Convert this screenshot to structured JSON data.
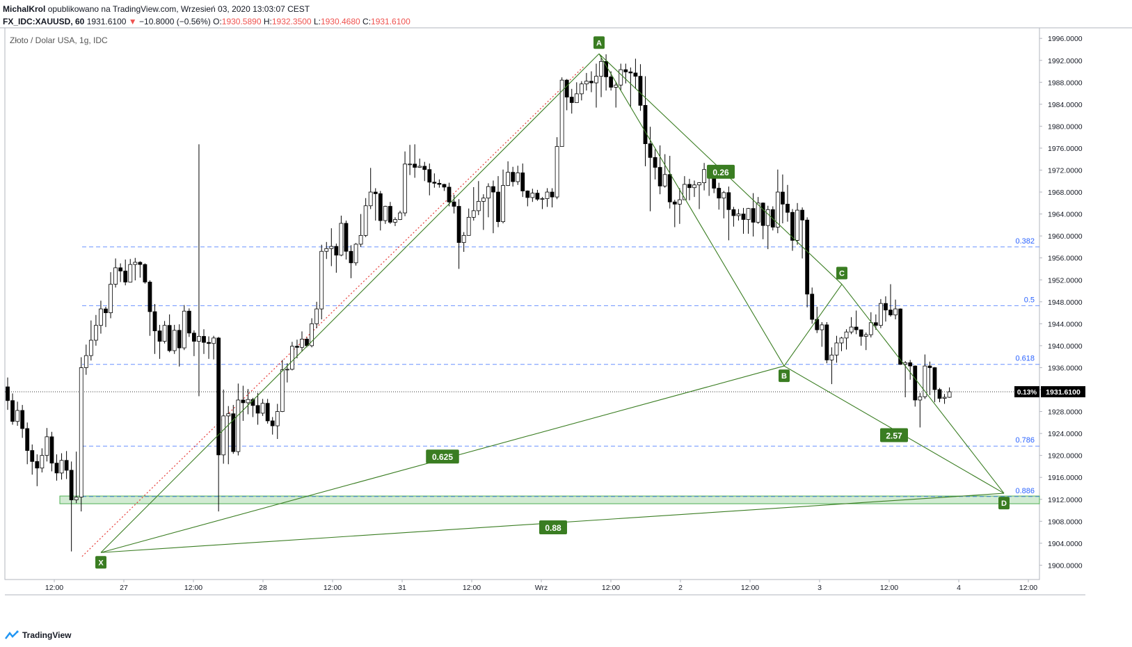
{
  "header": {
    "author": "MichalKrol",
    "published": "opublikowano na TradingView.com, Wrzesień 03, 2020 13:03:07 CEST",
    "symbol": "FX_IDC:XAUUSD, 60",
    "last": "1931.6100",
    "change": "−10.8000 (−0.56%)",
    "o_label": "O:",
    "o": "1930.5890",
    "h_label": "H:",
    "h": "1932.3500",
    "l_label": "L:",
    "l": "1930.4680",
    "c_label": "C:",
    "c": "1931.6100"
  },
  "footer": {
    "brand": "TradingView"
  },
  "colors": {
    "up": "#ffffff",
    "down": "#000000",
    "pattern": "#3a7d22",
    "fib": "#2962ff",
    "zone": "#4caf50"
  },
  "chart_data": {
    "type": "candlestick",
    "title": "Złoto / Dolar USA, 1g, IDC",
    "ylim": [
      1898,
      1998
    ],
    "y_ticks": [
      1900,
      1904,
      1908,
      1912,
      1916,
      1920,
      1924,
      1928,
      1932,
      1936,
      1940,
      1944,
      1948,
      1952,
      1956,
      1960,
      1964,
      1968,
      1972,
      1976,
      1980,
      1984,
      1988,
      1992,
      1996
    ],
    "x_labels": [
      "12:00",
      "27",
      "12:00",
      "28",
      "12:00",
      "31",
      "12:00",
      "Wrz",
      "12:00",
      "2",
      "12:00",
      "3",
      "12:00",
      "4",
      "12:00"
    ],
    "current_price": "1931.6100",
    "current_value": 1931.61,
    "current_pct": "0.13%",
    "fib_levels": [
      {
        "label": "0.382",
        "value": 1958.0
      },
      {
        "label": "0.5",
        "value": 1947.3
      },
      {
        "label": "0.618",
        "value": 1936.6
      },
      {
        "label": "0.786",
        "value": 1921.7
      },
      {
        "label": "0.886",
        "value": 1912.5
      }
    ],
    "prz_zone": [
      1911.2,
      1912.6
    ],
    "pattern_points": [
      {
        "label": "X",
        "t": 145,
        "value": 1902.3
      },
      {
        "label": "A",
        "t": 861,
        "value": 1993.2
      },
      {
        "label": "B",
        "t": 1127,
        "value": 1936.3
      },
      {
        "label": "C",
        "t": 1210,
        "value": 1951.2
      },
      {
        "label": "D",
        "t": 1443,
        "value": 1913.1
      }
    ],
    "ratios": [
      {
        "label": "0.26",
        "t": 1036,
        "value": 1971.7
      },
      {
        "label": "0.625",
        "t": 636,
        "value": 1919.8
      },
      {
        "label": "0.88",
        "t": 795,
        "value": 1906.9
      },
      {
        "label": "2.57",
        "t": 1285,
        "value": 1923.7
      }
    ],
    "candles": [
      [
        1932.5,
        1930.0,
        1934.2,
        1928.3
      ],
      [
        1930.0,
        1926.2,
        1931.3,
        1925.6
      ],
      [
        1926.2,
        1928.2,
        1929.8,
        1925.4
      ],
      [
        1928.2,
        1924.9,
        1929.2,
        1923.2
      ],
      [
        1924.9,
        1920.9,
        1926.0,
        1918.4
      ],
      [
        1920.9,
        1918.9,
        1922.0,
        1916.5
      ],
      [
        1918.9,
        1917.7,
        1920.2,
        1914.4
      ],
      [
        1917.7,
        1920.0,
        1921.3,
        1916.9
      ],
      [
        1920.0,
        1923.4,
        1925.0,
        1918.9
      ],
      [
        1923.4,
        1918.6,
        1924.3,
        1917.1
      ],
      [
        1918.6,
        1916.8,
        1920.2,
        1915.4
      ],
      [
        1916.8,
        1919.1,
        1920.4,
        1915.6
      ],
      [
        1919.1,
        1917.3,
        1920.8,
        1915.7
      ],
      [
        1917.3,
        1911.9,
        1918.9,
        1902.5
      ],
      [
        1911.9,
        1912.4,
        1920.7,
        1911.3
      ],
      [
        1912.4,
        1936.0,
        1937.9,
        1909.8
      ],
      [
        1936.0,
        1938.2,
        1940.2,
        1934.7
      ],
      [
        1938.2,
        1941.0,
        1944.6,
        1937.3
      ],
      [
        1941.0,
        1943.7,
        1945.6,
        1940.0
      ],
      [
        1943.7,
        1946.7,
        1948.2,
        1942.2
      ],
      [
        1946.7,
        1946.0,
        1947.1,
        1943.4
      ],
      [
        1946.0,
        1951.2,
        1953.4,
        1945.0
      ],
      [
        1951.2,
        1954.2,
        1955.9,
        1950.6
      ],
      [
        1954.2,
        1953.6,
        1955.0,
        1951.6
      ],
      [
        1953.6,
        1951.6,
        1955.7,
        1951.0
      ],
      [
        1951.6,
        1954.8,
        1955.8,
        1953.8
      ],
      [
        1954.8,
        1955.2,
        1956.0,
        1951.9
      ],
      [
        1955.2,
        1954.8,
        1955.4,
        1952.4
      ],
      [
        1954.8,
        1951.6,
        1955.0,
        1951.3
      ],
      [
        1951.6,
        1946.2,
        1951.9,
        1941.8
      ],
      [
        1946.2,
        1942.7,
        1947.6,
        1938.5
      ],
      [
        1942.7,
        1940.8,
        1943.8,
        1937.6
      ],
      [
        1940.8,
        1943.7,
        1944.5,
        1940.4
      ],
      [
        1943.7,
        1939.1,
        1945.7,
        1938.8
      ],
      [
        1939.1,
        1942.8,
        1943.8,
        1938.5
      ],
      [
        1942.8,
        1939.6,
        1943.9,
        1936.2
      ],
      [
        1939.6,
        1946.3,
        1947.4,
        1939.2
      ],
      [
        1946.3,
        1942.3,
        1946.8,
        1941.6
      ],
      [
        1942.3,
        1940.8,
        1942.8,
        1938.1
      ],
      [
        1940.8,
        1941.7,
        1976.7,
        1930.8
      ],
      [
        1941.7,
        1940.6,
        1943.0,
        1938.5
      ],
      [
        1940.6,
        1940.4,
        1941.7,
        1937.6
      ],
      [
        1940.4,
        1941.4,
        1941.8,
        1937.5
      ],
      [
        1941.4,
        1920.1,
        1941.6,
        1909.8
      ],
      [
        1920.1,
        1927.2,
        1932.0,
        1918.5
      ],
      [
        1927.2,
        1927.6,
        1929.0,
        1918.4
      ],
      [
        1927.6,
        1920.7,
        1929.2,
        1920.3
      ],
      [
        1920.7,
        1930.1,
        1933.1,
        1920.0
      ],
      [
        1930.1,
        1929.6,
        1932.7,
        1926.3
      ],
      [
        1929.6,
        1930.2,
        1932.1,
        1927.5
      ],
      [
        1930.2,
        1929.1,
        1930.5,
        1927.0
      ],
      [
        1929.1,
        1927.7,
        1931.4,
        1925.6
      ],
      [
        1927.7,
        1929.5,
        1930.3,
        1927.2
      ],
      [
        1929.5,
        1926.3,
        1930.3,
        1925.8
      ],
      [
        1926.3,
        1925.4,
        1927.0,
        1923.8
      ],
      [
        1925.4,
        1928.0,
        1929.4,
        1923.0
      ],
      [
        1928.0,
        1935.6,
        1937.4,
        1927.9
      ],
      [
        1935.6,
        1935.7,
        1936.8,
        1933.3
      ],
      [
        1935.7,
        1939.9,
        1940.7,
        1935.5
      ],
      [
        1939.9,
        1939.7,
        1941.1,
        1937.7
      ],
      [
        1939.7,
        1941.2,
        1942.6,
        1938.9
      ],
      [
        1941.2,
        1940.0,
        1941.5,
        1939.7
      ],
      [
        1940.0,
        1944.0,
        1945.0,
        1939.7
      ],
      [
        1944.0,
        1946.7,
        1948.0,
        1943.2
      ],
      [
        1946.7,
        1957.2,
        1958.4,
        1944.8
      ],
      [
        1957.2,
        1957.7,
        1958.9,
        1955.8
      ],
      [
        1957.7,
        1958.1,
        1961.4,
        1954.5
      ],
      [
        1958.1,
        1956.5,
        1958.6,
        1953.3
      ],
      [
        1956.5,
        1962.3,
        1963.7,
        1956.3
      ],
      [
        1962.3,
        1957.2,
        1962.8,
        1955.7
      ],
      [
        1957.2,
        1955.1,
        1958.3,
        1952.3
      ],
      [
        1955.1,
        1958.5,
        1958.7,
        1954.6
      ],
      [
        1958.5,
        1960.1,
        1964.0,
        1958.0
      ],
      [
        1960.1,
        1965.5,
        1966.9,
        1959.8
      ],
      [
        1965.5,
        1968.0,
        1972.4,
        1964.9
      ],
      [
        1968.0,
        1967.7,
        1968.7,
        1962.8
      ],
      [
        1967.7,
        1962.8,
        1968.2,
        1961.0
      ],
      [
        1962.8,
        1965.4,
        1965.5,
        1962.2
      ],
      [
        1965.4,
        1962.5,
        1966.2,
        1962.2
      ],
      [
        1962.5,
        1963.0,
        1963.4,
        1961.8
      ],
      [
        1963.0,
        1964.2,
        1964.6,
        1962.9
      ],
      [
        1964.2,
        1973.1,
        1975.4,
        1963.6
      ],
      [
        1973.1,
        1973.1,
        1976.6,
        1971.1
      ],
      [
        1973.1,
        1972.5,
        1976.7,
        1970.6
      ],
      [
        1972.5,
        1972.7,
        1974.1,
        1972.4
      ],
      [
        1972.7,
        1972.1,
        1973.5,
        1970.0
      ],
      [
        1972.1,
        1969.8,
        1973.2,
        1967.4
      ],
      [
        1969.8,
        1969.6,
        1971.4,
        1968.8
      ],
      [
        1969.6,
        1969.4,
        1970.3,
        1968.8
      ],
      [
        1969.4,
        1968.9,
        1969.5,
        1968.2
      ],
      [
        1968.9,
        1966.2,
        1969.7,
        1965.4
      ],
      [
        1966.2,
        1965.4,
        1967.5,
        1964.1
      ],
      [
        1965.4,
        1958.8,
        1966.7,
        1954.0
      ],
      [
        1958.8,
        1960.1,
        1960.7,
        1957.1
      ],
      [
        1960.1,
        1963.4,
        1965.0,
        1963.1
      ],
      [
        1963.4,
        1964.6,
        1968.9,
        1962.8
      ],
      [
        1964.6,
        1966.3,
        1970.0,
        1963.8
      ],
      [
        1966.3,
        1966.9,
        1967.6,
        1961.1
      ],
      [
        1966.9,
        1969.0,
        1969.6,
        1963.4
      ],
      [
        1969.0,
        1968.0,
        1970.1,
        1960.5
      ],
      [
        1968.0,
        1962.6,
        1970.9,
        1961.6
      ],
      [
        1962.6,
        1969.2,
        1972.1,
        1962.3
      ],
      [
        1969.2,
        1971.6,
        1973.6,
        1969.1
      ],
      [
        1971.6,
        1969.9,
        1972.6,
        1969.0
      ],
      [
        1969.9,
        1971.5,
        1972.8,
        1969.3
      ],
      [
        1971.5,
        1968.2,
        1973.2,
        1967.1
      ],
      [
        1968.2,
        1967.0,
        1968.3,
        1965.4
      ],
      [
        1967.0,
        1967.8,
        1968.6,
        1966.2
      ],
      [
        1967.8,
        1966.7,
        1968.4,
        1966.4
      ],
      [
        1966.7,
        1966.8,
        1967.1,
        1964.9
      ],
      [
        1966.8,
        1968.0,
        1968.7,
        1965.3
      ],
      [
        1968.0,
        1967.1,
        1968.7,
        1965.2
      ],
      [
        1967.1,
        1976.3,
        1978.0,
        1966.7
      ],
      [
        1976.3,
        1988.4,
        1988.9,
        1976.3
      ],
      [
        1988.4,
        1985.3,
        1988.6,
        1982.9
      ],
      [
        1985.3,
        1984.3,
        1986.8,
        1982.3
      ],
      [
        1984.3,
        1985.9,
        1988.0,
        1985.2
      ],
      [
        1985.9,
        1987.7,
        1988.2,
        1984.7
      ],
      [
        1987.7,
        1988.2,
        1989.7,
        1986.5
      ],
      [
        1988.2,
        1987.9,
        1990.0,
        1986.2
      ],
      [
        1987.9,
        1989.1,
        1991.4,
        1983.4
      ],
      [
        1989.1,
        1991.8,
        1992.9,
        1985.3
      ],
      [
        1991.8,
        1989.0,
        1993.1,
        1986.5
      ],
      [
        1989.0,
        1987.1,
        1990.0,
        1986.5
      ],
      [
        1987.1,
        1987.5,
        1988.1,
        1983.4
      ],
      [
        1987.5,
        1990.3,
        1991.4,
        1986.5
      ],
      [
        1990.3,
        1989.9,
        1991.4,
        1987.8
      ],
      [
        1989.9,
        1989.7,
        1990.7,
        1983.5
      ],
      [
        1989.7,
        1989.1,
        1992.3,
        1986.8
      ],
      [
        1989.1,
        1983.8,
        1991.3,
        1982.8
      ],
      [
        1983.8,
        1976.8,
        1989.1,
        1972.7
      ],
      [
        1976.8,
        1974.3,
        1979.9,
        1964.5
      ],
      [
        1974.3,
        1972.5,
        1975.8,
        1970.3
      ],
      [
        1972.5,
        1969.1,
        1976.5,
        1967.6
      ],
      [
        1969.1,
        1971.2,
        1974.9,
        1968.8
      ],
      [
        1971.2,
        1966.2,
        1974.6,
        1965.0
      ],
      [
        1966.2,
        1965.8,
        1966.6,
        1961.6
      ],
      [
        1965.8,
        1966.6,
        1968.7,
        1962.2
      ],
      [
        1966.6,
        1969.4,
        1970.9,
        1967.6
      ],
      [
        1969.4,
        1968.8,
        1970.4,
        1966.5
      ],
      [
        1968.8,
        1969.3,
        1970.1,
        1967.1
      ],
      [
        1969.3,
        1969.7,
        1969.8,
        1964.9
      ],
      [
        1969.7,
        1972.1,
        1973.3,
        1968.3
      ],
      [
        1972.1,
        1970.8,
        1972.1,
        1967.3
      ],
      [
        1970.8,
        1968.7,
        1972.7,
        1967.8
      ],
      [
        1968.7,
        1966.9,
        1969.7,
        1964.8
      ],
      [
        1966.9,
        1967.9,
        1968.2,
        1963.2
      ],
      [
        1967.9,
        1964.8,
        1969.0,
        1959.2
      ],
      [
        1964.8,
        1963.7,
        1965.3,
        1961.7
      ],
      [
        1963.7,
        1964.0,
        1964.9,
        1962.8
      ],
      [
        1964.0,
        1963.0,
        1965.1,
        1960.4
      ],
      [
        1963.0,
        1965.0,
        1965.1,
        1960.4
      ],
      [
        1965.0,
        1962.5,
        1967.8,
        1959.9
      ],
      [
        1962.5,
        1966.0,
        1967.1,
        1962.2
      ],
      [
        1966.0,
        1961.9,
        1966.1,
        1959.4
      ],
      [
        1961.9,
        1964.8,
        1965.5,
        1957.6
      ],
      [
        1964.8,
        1961.6,
        1965.4,
        1961.0
      ],
      [
        1961.6,
        1968.0,
        1972.1,
        1960.5
      ],
      [
        1968.0,
        1965.8,
        1971.2,
        1962.3
      ],
      [
        1965.8,
        1964.3,
        1969.3,
        1962.6
      ],
      [
        1964.3,
        1959.2,
        1964.9,
        1957.3
      ],
      [
        1959.2,
        1964.7,
        1966.0,
        1958.4
      ],
      [
        1964.7,
        1962.9,
        1965.2,
        1955.9
      ],
      [
        1962.9,
        1949.4,
        1963.4,
        1947.0
      ],
      [
        1949.4,
        1944.8,
        1950.6,
        1944.0
      ],
      [
        1944.8,
        1942.9,
        1947.1,
        1942.3
      ],
      [
        1942.9,
        1943.8,
        1944.3,
        1939.8
      ],
      [
        1943.8,
        1937.4,
        1944.3,
        1936.8
      ],
      [
        1937.4,
        1938.3,
        1939.7,
        1933.0
      ],
      [
        1938.3,
        1940.5,
        1941.8,
        1936.9
      ],
      [
        1940.5,
        1941.4,
        1941.6,
        1939.0
      ],
      [
        1941.4,
        1942.5,
        1943.0,
        1939.3
      ],
      [
        1942.5,
        1943.4,
        1945.2,
        1942.1
      ],
      [
        1943.4,
        1942.9,
        1946.4,
        1942.1
      ],
      [
        1942.9,
        1941.7,
        1942.9,
        1940.0
      ],
      [
        1941.7,
        1942.0,
        1942.4,
        1939.2
      ],
      [
        1942.0,
        1944.2,
        1946.1,
        1941.5
      ],
      [
        1944.2,
        1943.7,
        1945.7,
        1942.9
      ],
      [
        1943.7,
        1947.7,
        1948.5,
        1943.2
      ],
      [
        1947.7,
        1946.5,
        1949.0,
        1944.4
      ],
      [
        1946.5,
        1945.6,
        1951.2,
        1945.3
      ],
      [
        1945.6,
        1946.7,
        1948.4,
        1944.8
      ],
      [
        1946.7,
        1936.6,
        1946.8,
        1936.5
      ],
      [
        1936.6,
        1936.9,
        1937.2,
        1930.6
      ],
      [
        1936.9,
        1936.3,
        1937.4,
        1933.8
      ],
      [
        1936.3,
        1930.1,
        1936.4,
        1928.9
      ],
      [
        1930.1,
        1930.7,
        1931.4,
        1925.1
      ],
      [
        1930.7,
        1936.3,
        1938.4,
        1930.3
      ],
      [
        1936.3,
        1936.0,
        1937.1,
        1931.0
      ],
      [
        1936.0,
        1932.0,
        1936.1,
        1929.7
      ],
      [
        1932.0,
        1930.4,
        1932.3,
        1929.7
      ],
      [
        1930.4,
        1930.6,
        1931.2,
        1929.4
      ],
      [
        1930.6,
        1931.6,
        1932.4,
        1930.5
      ]
    ]
  }
}
